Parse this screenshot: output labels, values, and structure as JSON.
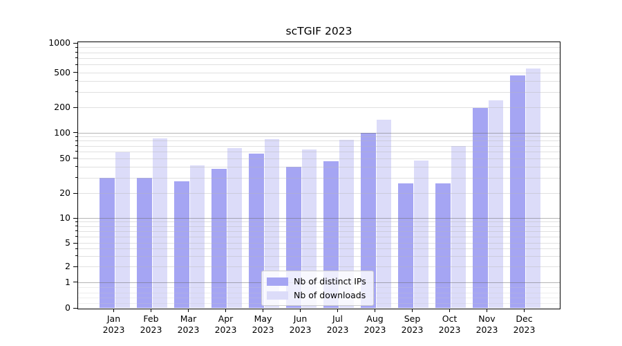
{
  "title": "scTGIF 2023",
  "legend": {
    "items": [
      {
        "label": "Nb of distinct IPs",
        "color": "#a5a5f3"
      },
      {
        "label": "Nb of downloads",
        "color": "#dcdcf9"
      }
    ]
  },
  "colors": {
    "bar_distinct_ips": "#a5a5f3",
    "bar_downloads": "#dcdcf9",
    "grid_major": "#b0b0b0",
    "grid_minor": "#e4e4e4",
    "spine": "#000000",
    "background": "#ffffff"
  },
  "chart_data": {
    "type": "bar",
    "title": "scTGIF 2023",
    "categories": [
      "Jan 2023",
      "Feb 2023",
      "Mar 2023",
      "Apr 2023",
      "May 2023",
      "Jun 2023",
      "Jul 2023",
      "Aug 2023",
      "Sep 2023",
      "Oct 2023",
      "Nov 2023",
      "Dec 2023"
    ],
    "series": [
      {
        "name": "Nb of distinct IPs",
        "color": "#a5a5f3",
        "values": [
          30,
          30,
          27,
          38,
          57,
          40,
          46,
          100,
          26,
          26,
          195,
          460
        ]
      },
      {
        "name": "Nb of downloads",
        "color": "#dcdcf9",
        "values": [
          59,
          86,
          41,
          65,
          83,
          63,
          82,
          143,
          47,
          70,
          240,
          550
        ]
      }
    ],
    "xlabel": "",
    "ylabel": "",
    "yscale": "symlog",
    "ylim": [
      0,
      1000
    ],
    "yticks": [
      0,
      1,
      2,
      5,
      10,
      20,
      50,
      100,
      200,
      500,
      1000
    ],
    "grid": "both",
    "legend_position": "lower center"
  }
}
